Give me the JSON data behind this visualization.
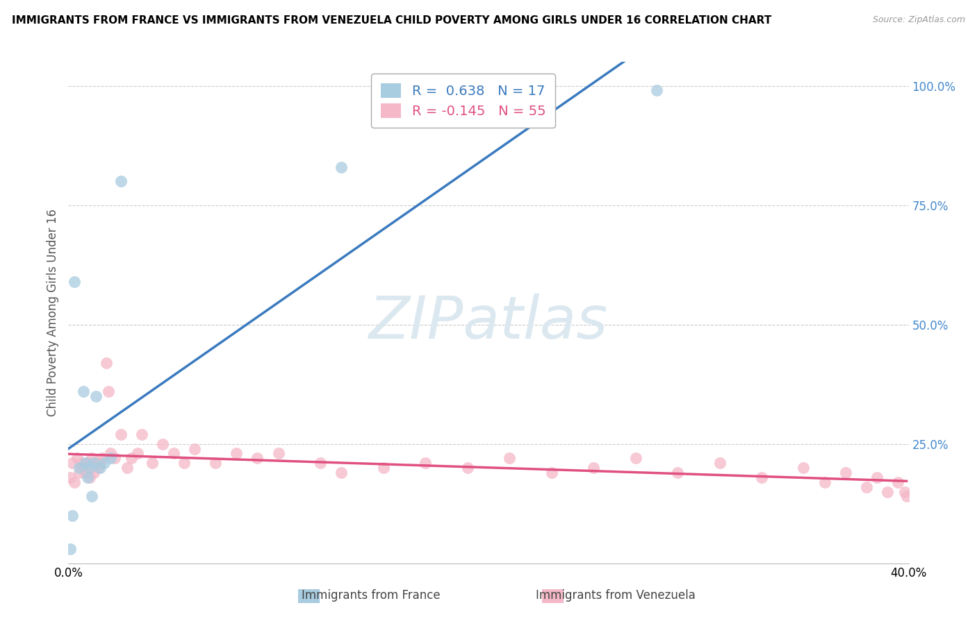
{
  "title": "IMMIGRANTS FROM FRANCE VS IMMIGRANTS FROM VENEZUELA CHILD POVERTY AMONG GIRLS UNDER 16 CORRELATION CHART",
  "source": "Source: ZipAtlas.com",
  "ylabel": "Child Poverty Among Girls Under 16",
  "xlim": [
    0.0,
    0.4
  ],
  "ylim": [
    0.0,
    1.05
  ],
  "france_R": 0.638,
  "france_N": 17,
  "venezuela_R": -0.145,
  "venezuela_N": 55,
  "france_color": "#a8cce0",
  "venezuela_color": "#f4b8c8",
  "france_line_color": "#3a7abf",
  "venezuela_line_color": "#e05080",
  "watermark": "ZIPatlas",
  "watermark_color": "#dce8f0",
  "france_x": [
    0.001,
    0.002,
    0.003,
    0.005,
    0.007,
    0.008,
    0.009,
    0.01,
    0.011,
    0.012,
    0.013,
    0.015,
    0.017,
    0.02,
    0.025,
    0.13,
    0.28
  ],
  "france_y": [
    0.03,
    0.1,
    0.59,
    0.2,
    0.36,
    0.21,
    0.18,
    0.2,
    0.14,
    0.21,
    0.35,
    0.2,
    0.21,
    0.22,
    0.8,
    0.83,
    0.99
  ],
  "venezuela_x": [
    0.001,
    0.002,
    0.003,
    0.004,
    0.005,
    0.006,
    0.007,
    0.008,
    0.009,
    0.01,
    0.011,
    0.012,
    0.013,
    0.014,
    0.015,
    0.016,
    0.018,
    0.019,
    0.02,
    0.022,
    0.025,
    0.028,
    0.03,
    0.033,
    0.035,
    0.04,
    0.045,
    0.05,
    0.055,
    0.06,
    0.07,
    0.08,
    0.09,
    0.1,
    0.12,
    0.13,
    0.15,
    0.17,
    0.19,
    0.21,
    0.23,
    0.25,
    0.27,
    0.29,
    0.31,
    0.33,
    0.35,
    0.36,
    0.37,
    0.38,
    0.385,
    0.39,
    0.395,
    0.398,
    0.399
  ],
  "venezuela_y": [
    0.18,
    0.21,
    0.17,
    0.22,
    0.19,
    0.21,
    0.2,
    0.19,
    0.21,
    0.18,
    0.22,
    0.19,
    0.21,
    0.2,
    0.21,
    0.22,
    0.42,
    0.36,
    0.23,
    0.22,
    0.27,
    0.2,
    0.22,
    0.23,
    0.27,
    0.21,
    0.25,
    0.23,
    0.21,
    0.24,
    0.21,
    0.23,
    0.22,
    0.23,
    0.21,
    0.19,
    0.2,
    0.21,
    0.2,
    0.22,
    0.19,
    0.2,
    0.22,
    0.19,
    0.21,
    0.18,
    0.2,
    0.17,
    0.19,
    0.16,
    0.18,
    0.15,
    0.17,
    0.15,
    0.14
  ]
}
